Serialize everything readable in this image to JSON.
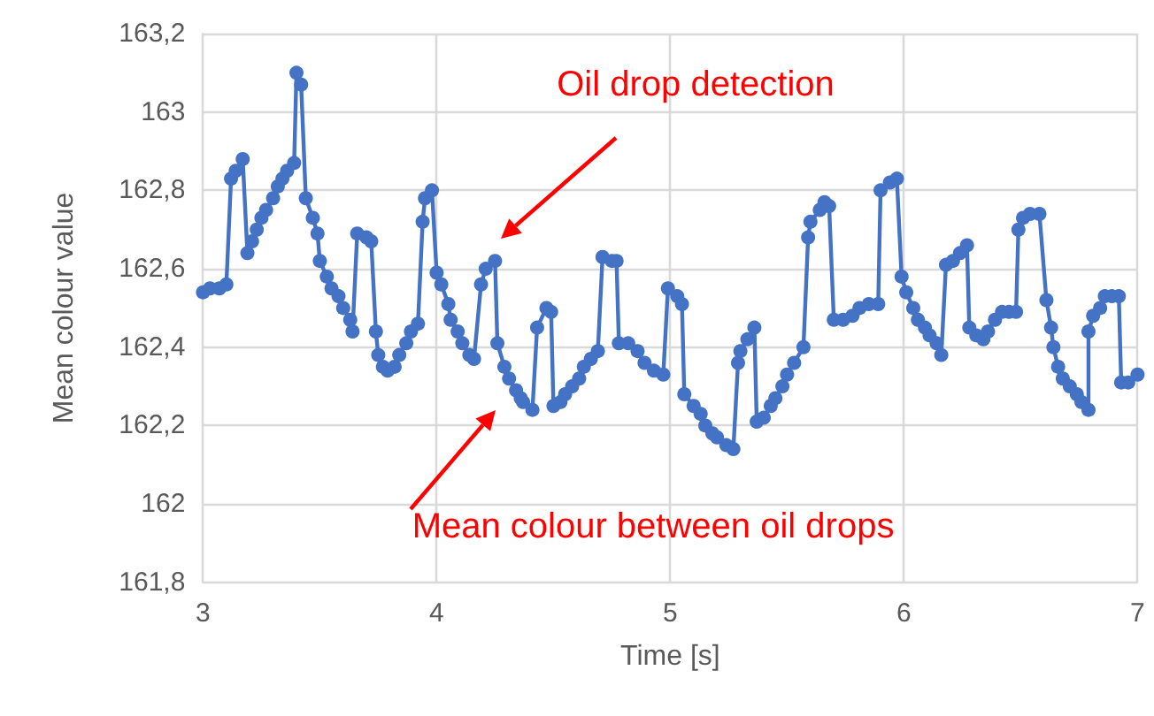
{
  "chart_data": {
    "type": "line",
    "xlabel": "Time [s]",
    "ylabel": "Mean colour value",
    "marker": "circle",
    "grid": true,
    "xlim": [
      3,
      7
    ],
    "xticks": [
      3,
      4,
      5,
      6,
      7
    ],
    "ylim": [
      161.8,
      163.2
    ],
    "yticks": [
      {
        "value": 161.8,
        "label": "161,8"
      },
      {
        "value": 162,
        "label": "162"
      },
      {
        "value": 162.2,
        "label": "162,2"
      },
      {
        "value": 162.4,
        "label": "162,4"
      },
      {
        "value": 162.6,
        "label": "162,6"
      },
      {
        "value": 162.8,
        "label": "162,8"
      },
      {
        "value": 163,
        "label": "163"
      },
      {
        "value": 163.2,
        "label": "163,2"
      }
    ],
    "annotations": [
      "Oil drop detection",
      "Mean colour between oil drops"
    ],
    "series": [
      {
        "color": "#4472c4",
        "x": [
          3.0,
          3.03,
          3.07,
          3.1,
          3.12,
          3.14,
          3.17,
          3.19,
          3.21,
          3.23,
          3.25,
          3.27,
          3.3,
          3.32,
          3.34,
          3.36,
          3.39,
          3.4,
          3.42,
          3.44,
          3.47,
          3.49,
          3.5,
          3.53,
          3.55,
          3.58,
          3.6,
          3.63,
          3.64,
          3.66,
          3.7,
          3.72,
          3.74,
          3.75,
          3.77,
          3.79,
          3.82,
          3.84,
          3.87,
          3.89,
          3.92,
          3.94,
          3.95,
          3.98,
          4.0,
          4.02,
          4.05,
          4.06,
          4.09,
          4.11,
          4.14,
          4.16,
          4.19,
          4.21,
          4.25,
          4.26,
          4.29,
          4.31,
          4.34,
          4.36,
          4.37,
          4.41,
          4.43,
          4.47,
          4.49,
          4.5,
          4.53,
          4.55,
          4.58,
          4.61,
          4.63,
          4.66,
          4.69,
          4.71,
          4.75,
          4.77,
          4.78,
          4.82,
          4.86,
          4.89,
          4.93,
          4.97,
          4.99,
          5.03,
          5.05,
          5.06,
          5.1,
          5.13,
          5.15,
          5.18,
          5.2,
          5.24,
          5.27,
          5.29,
          5.3,
          5.33,
          5.36,
          5.37,
          5.4,
          5.43,
          5.45,
          5.48,
          5.5,
          5.53,
          5.57,
          5.59,
          5.6,
          5.64,
          5.66,
          5.68,
          5.7,
          5.74,
          5.78,
          5.81,
          5.85,
          5.89,
          5.9,
          5.94,
          5.97,
          5.99,
          6.01,
          6.04,
          6.06,
          6.09,
          6.11,
          6.14,
          6.16,
          6.18,
          6.21,
          6.24,
          6.27,
          6.28,
          6.31,
          6.34,
          6.36,
          6.39,
          6.42,
          6.45,
          6.48,
          6.49,
          6.51,
          6.54,
          6.58,
          6.61,
          6.63,
          6.64,
          6.66,
          6.68,
          6.71,
          6.74,
          6.76,
          6.79,
          6.79,
          6.81,
          6.84,
          6.86,
          6.89,
          6.92,
          6.93,
          6.96,
          7.0
        ],
        "values": [
          162.54,
          162.55,
          162.55,
          162.56,
          162.83,
          162.85,
          162.88,
          162.64,
          162.67,
          162.7,
          162.73,
          162.75,
          162.78,
          162.81,
          162.83,
          162.85,
          162.87,
          163.1,
          163.07,
          162.78,
          162.73,
          162.69,
          162.62,
          162.58,
          162.55,
          162.53,
          162.5,
          162.47,
          162.44,
          162.69,
          162.68,
          162.67,
          162.44,
          162.38,
          162.35,
          162.34,
          162.35,
          162.38,
          162.41,
          162.44,
          162.46,
          162.72,
          162.78,
          162.8,
          162.59,
          162.56,
          162.51,
          162.47,
          162.44,
          162.41,
          162.38,
          162.37,
          162.56,
          162.6,
          162.62,
          162.41,
          162.35,
          162.32,
          162.29,
          162.27,
          162.26,
          162.24,
          162.45,
          162.5,
          162.49,
          162.25,
          162.26,
          162.28,
          162.3,
          162.32,
          162.35,
          162.37,
          162.39,
          162.63,
          162.62,
          162.62,
          162.41,
          162.41,
          162.39,
          162.36,
          162.34,
          162.33,
          162.55,
          162.53,
          162.51,
          162.28,
          162.25,
          162.23,
          162.2,
          162.18,
          162.17,
          162.15,
          162.14,
          162.36,
          162.39,
          162.42,
          162.45,
          162.21,
          162.22,
          162.25,
          162.27,
          162.3,
          162.33,
          162.36,
          162.4,
          162.68,
          162.72,
          162.75,
          162.77,
          162.76,
          162.47,
          162.47,
          162.48,
          162.5,
          162.51,
          162.51,
          162.8,
          162.82,
          162.83,
          162.58,
          162.54,
          162.5,
          162.47,
          162.45,
          162.43,
          162.41,
          162.38,
          162.61,
          162.62,
          162.64,
          162.66,
          162.45,
          162.43,
          162.42,
          162.44,
          162.47,
          162.49,
          162.49,
          162.49,
          162.7,
          162.73,
          162.74,
          162.74,
          162.52,
          162.45,
          162.4,
          162.35,
          162.32,
          162.3,
          162.28,
          162.26,
          162.24,
          162.44,
          162.48,
          162.5,
          162.53,
          162.53,
          162.53,
          162.31,
          162.31,
          162.33
        ]
      }
    ]
  }
}
